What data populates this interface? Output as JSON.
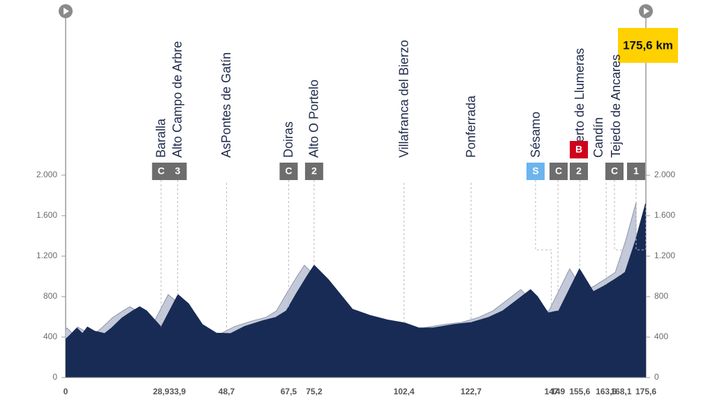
{
  "chart_data": {
    "type": "area",
    "x": [
      0,
      1.3,
      3.4,
      5.1,
      6.6,
      8.7,
      11.8,
      13.9,
      17.1,
      20.3,
      22.4,
      24.5,
      28.9,
      34,
      37.2,
      41.4,
      45.6,
      49.9,
      54.1,
      59.4,
      63.6,
      66.8,
      69.9,
      73.1,
      75.2,
      79.5,
      83.7,
      86.8,
      92.1,
      97.4,
      102.7,
      106.9,
      111.1,
      117.5,
      122.8,
      128,
      132.3,
      136.5,
      140.7,
      142.8,
      146,
      149.2,
      155.5,
      159.7,
      162.9,
      166.1,
      169.3,
      172.4,
      175.6
    ],
    "values": [
      380,
      420,
      490,
      435,
      500,
      460,
      435,
      490,
      590,
      660,
      700,
      660,
      500,
      820,
      730,
      525,
      440,
      435,
      505,
      560,
      595,
      660,
      835,
      1005,
      1110,
      970,
      800,
      675,
      615,
      570,
      540,
      490,
      490,
      525,
      545,
      595,
      660,
      765,
      870,
      800,
      640,
      660,
      1075,
      850,
      905,
      970,
      1040,
      1350,
      1730
    ],
    "color": "#172b55",
    "shadow_color": "#c3c9d8",
    "xlim": [
      0,
      175.6
    ],
    "ylim": [
      0,
      2000
    ],
    "yticks": [
      0,
      400,
      800,
      {
        "value": 1200,
        "label": "1.200"
      },
      {
        "value": 1600,
        "label": "1.600"
      },
      {
        "value": 2000,
        "label": "2.000"
      }
    ],
    "xticks": [
      0,
      {
        "value": 28.9,
        "label": "28,9"
      },
      {
        "value": 33.9,
        "label": "33,9"
      },
      {
        "value": 48.7,
        "label": "48,7"
      },
      {
        "value": 67.5,
        "label": "67,5"
      },
      {
        "value": 75.2,
        "label": "75,2"
      },
      {
        "value": 102.4,
        "label": "102,4"
      },
      {
        "value": 122.7,
        "label": "122,7"
      },
      147,
      149,
      {
        "value": 155.6,
        "label": "155,6"
      },
      {
        "value": 163.6,
        "label": "163,6"
      },
      {
        "value": 168.1,
        "label": "168,1"
      },
      {
        "value": 175.6,
        "label": "175,6"
      }
    ],
    "waypoints": [
      null,
      {
        "name": "Baralla",
        "badges": [
          "C"
        ]
      },
      {
        "name": "Alto Campo de Arbre",
        "badges": [
          "3"
        ]
      },
      {
        "name": "AsPontes de Gatín",
        "badges": []
      },
      {
        "name": "Doiras",
        "badges": [
          "C"
        ]
      },
      {
        "name": "Alto O Portelo",
        "badges": [
          "2"
        ]
      },
      {
        "name": "Villafranca del Bierzo",
        "badges": []
      },
      {
        "name": "Ponferrada",
        "badges": []
      },
      {
        "name": "Sésamo",
        "badges": [
          "S"
        ]
      },
      {
        "name": null,
        "badges": [
          "C"
        ]
      },
      {
        "name": "Puerto de Llumeras",
        "badges": [
          "2",
          "B"
        ]
      },
      {
        "name": "Candín",
        "badges": []
      },
      {
        "name": "Tejedo de Ancares",
        "badges": [
          "C"
        ]
      },
      {
        "name": null,
        "badges": [
          "1"
        ]
      }
    ],
    "badge_colors": {
      "S": "#6cb4ee",
      "B": "#d0021b",
      "C": "#6d6d6d",
      "1": "#6d6d6d",
      "2": "#6d6d6d",
      "3": "#6d6d6d"
    },
    "distance_label": "175,6 km"
  }
}
